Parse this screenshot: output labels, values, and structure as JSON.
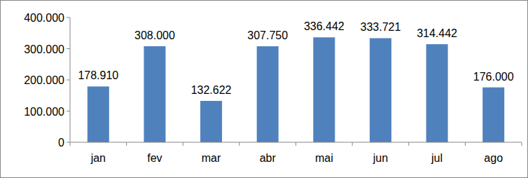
{
  "chart_data": {
    "type": "bar",
    "categories": [
      "jan",
      "fev",
      "mar",
      "abr",
      "mai",
      "jun",
      "jul",
      "ago"
    ],
    "values": [
      178910,
      308000,
      132622,
      307750,
      336442,
      333721,
      314442,
      176000
    ],
    "value_labels": [
      "178.910",
      "308.000",
      "132.622",
      "307.750",
      "336.442",
      "333.721",
      "314.442",
      "176.000"
    ],
    "color": "#4f81bd",
    "ylim": [
      0,
      400000
    ],
    "yticks": [
      0,
      {
        "value": 100000,
        "label": "100.000"
      },
      {
        "value": 200000,
        "label": "200.000"
      },
      {
        "value": 300000,
        "label": "300.000"
      },
      {
        "value": 400000,
        "label": "400.000"
      }
    ],
    "grid": false,
    "data_labels": true
  }
}
